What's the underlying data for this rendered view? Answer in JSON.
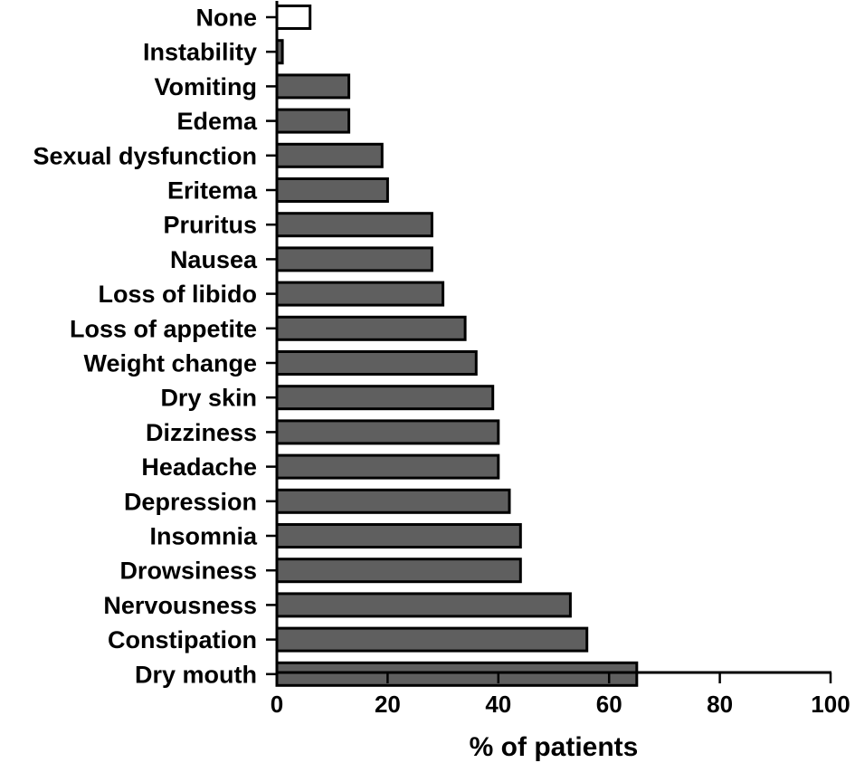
{
  "chart_data": {
    "type": "bar",
    "orientation": "horizontal",
    "categories": [
      "None",
      "Instability",
      "Vomiting",
      "Edema",
      "Sexual dysfunction",
      "Eritema",
      "Pruritus",
      "Nausea",
      "Loss of libido",
      "Loss of appetite",
      "Weight change",
      "Dry skin",
      "Dizziness",
      "Headache",
      "Depression",
      "Insomnia",
      "Drowsiness",
      "Nervousness",
      "Constipation",
      "Dry mouth"
    ],
    "values": [
      6,
      1,
      13,
      13,
      19,
      20,
      28,
      28,
      30,
      34,
      36,
      39,
      40,
      40,
      42,
      44,
      44,
      53,
      56,
      65
    ],
    "title": "",
    "xlabel": "% of patients",
    "ylabel": "",
    "xlim": [
      0,
      100
    ],
    "xticks": [
      "0",
      "20",
      "40",
      "60",
      "80",
      "100"
    ],
    "grid": false,
    "legend": "none",
    "colors": {
      "bar_fill": "#5f5f5f",
      "none_fill": "#ffffff",
      "stroke": "#000000"
    }
  }
}
